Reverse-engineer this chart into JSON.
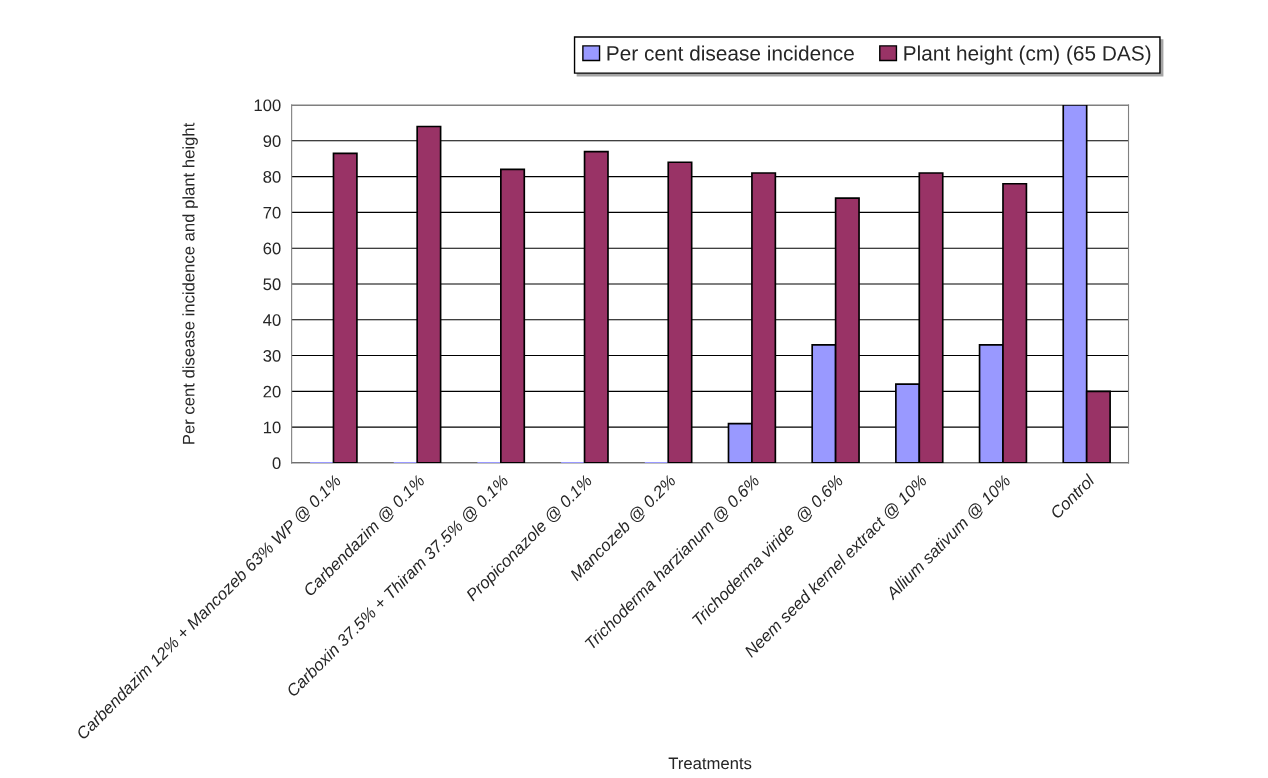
{
  "chart_data": {
    "type": "bar",
    "xlabel": "Treatments",
    "ylabel": "Per cent disease incidence and plant height",
    "categories": [
      "Carbendazim 12% + Mancozeb 63% WP @ 0.1%",
      "Carbendazim @ 0.1%",
      "Carboxin 37.5% + Thiram 37.5% @ 0.1%",
      "Propiconazole @ 0.1%",
      "Mancozeb @ 0.2%",
      "Trichoderma harzianum @ 0.6%",
      "Trichoderma viride  @ 0.6%",
      "Neem seed kernel extract @ 10%",
      "Allium sativum @ 10%",
      "Control"
    ],
    "series": [
      {
        "name": "Per cent disease incidence",
        "color": "#9999ff",
        "values": [
          0,
          0,
          0,
          0,
          0,
          11,
          33,
          22,
          33,
          100
        ]
      },
      {
        "name": "Plant height (cm) (65 DAS)",
        "color": "#993366",
        "values": [
          86.5,
          94,
          82,
          87,
          84,
          81,
          74,
          81,
          78,
          20
        ]
      }
    ],
    "ylim": [
      0,
      100
    ],
    "yticks": [
      0,
      10,
      20,
      30,
      40,
      50,
      60,
      70,
      80,
      90,
      100
    ],
    "grid": "y",
    "legend": "top right"
  }
}
